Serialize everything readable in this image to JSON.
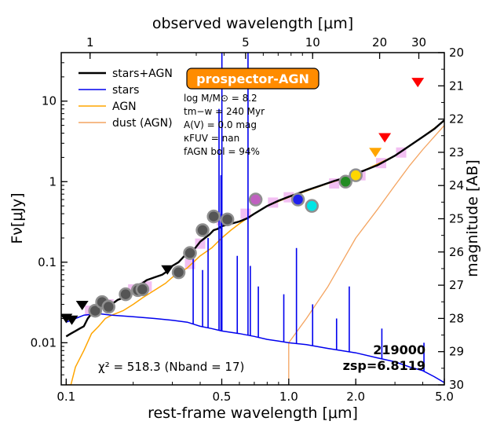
{
  "chart_data": {
    "type": "scatter",
    "xscale": "log",
    "yscale": "log",
    "xlim": [
      0.095,
      5.0
    ],
    "ylim": [
      0.003,
      40
    ],
    "ylim_right_mag": [
      20,
      30
    ],
    "xlabel": "rest-frame wavelength [μm]",
    "ylabel": "Fν[μJy]",
    "top_xlabel": "observed wavelength [μm]",
    "right_ylabel": "magnitude [AB]",
    "x_ticks": [
      {
        "value": 0.1,
        "label": "0.1"
      },
      {
        "value": 0.5,
        "label": "0.5"
      },
      {
        "value": 1.0,
        "label": "1.0"
      },
      {
        "value": 2.0,
        "label": "2.0"
      },
      {
        "value": 5.0,
        "label": "5.0"
      }
    ],
    "top_ticks": [
      {
        "value": 1,
        "label": "1"
      },
      {
        "value": 5,
        "label": "5"
      },
      {
        "value": 10,
        "label": "10"
      },
      {
        "value": 20,
        "label": "20"
      },
      {
        "value": 30,
        "label": "30"
      }
    ],
    "y_ticks": [
      {
        "value": 0.01,
        "label": "0.01"
      },
      {
        "value": 0.1,
        "label": "0.1"
      },
      {
        "value": 1,
        "label": "1"
      },
      {
        "value": 10,
        "label": "10"
      }
    ],
    "mag_ticks": [
      "20",
      "21",
      "22",
      "23",
      "24",
      "25",
      "26",
      "27",
      "28",
      "29",
      "30"
    ],
    "redshift": 6.8119,
    "legend": [
      {
        "label": "stars+AGN",
        "color": "#000000"
      },
      {
        "label": "stars",
        "color": "#0000ee"
      },
      {
        "label": "AGN",
        "color": "#ffa500"
      },
      {
        "label": "dust (AGN)",
        "color": "#f4a460"
      }
    ],
    "badge": "prospector-AGN",
    "params": {
      "logM": "log M/M⊙ = 8.2",
      "tmw": "tm−w = 240 Myr",
      "av": "A(V) = 0.0 mag",
      "kfuv": "κFUV = nan",
      "fbol": "fAGN bol = 94%"
    },
    "chi2": "χ² = 518.3 (Nband = 17)",
    "object_id": "219000",
    "zsp": "zsp=6.8119",
    "series": [
      {
        "name": "stars+AGN",
        "color": "#000000",
        "points": [
          [
            0.1,
            0.012
          ],
          [
            0.105,
            0.013
          ],
          [
            0.11,
            0.014
          ],
          [
            0.115,
            0.015
          ],
          [
            0.12,
            0.016
          ],
          [
            0.125,
            0.02
          ],
          [
            0.13,
            0.023
          ],
          [
            0.14,
            0.026
          ],
          [
            0.15,
            0.028
          ],
          [
            0.16,
            0.03
          ],
          [
            0.17,
            0.034
          ],
          [
            0.18,
            0.036
          ],
          [
            0.19,
            0.04
          ],
          [
            0.2,
            0.042
          ],
          [
            0.21,
            0.05
          ],
          [
            0.22,
            0.055
          ],
          [
            0.23,
            0.06
          ],
          [
            0.25,
            0.065
          ],
          [
            0.27,
            0.07
          ],
          [
            0.29,
            0.08
          ],
          [
            0.3,
            0.09
          ],
          [
            0.32,
            0.1
          ],
          [
            0.34,
            0.12
          ],
          [
            0.36,
            0.13
          ],
          [
            0.38,
            0.15
          ],
          [
            0.4,
            0.18
          ],
          [
            0.42,
            0.2
          ],
          [
            0.44,
            0.22
          ],
          [
            0.46,
            0.25
          ],
          [
            0.48,
            0.26
          ],
          [
            0.5,
            0.28
          ],
          [
            0.55,
            0.3
          ],
          [
            0.6,
            0.32
          ],
          [
            0.65,
            0.35
          ],
          [
            0.7,
            0.4
          ],
          [
            0.8,
            0.5
          ],
          [
            0.9,
            0.58
          ],
          [
            1.0,
            0.65
          ],
          [
            1.2,
            0.78
          ],
          [
            1.4,
            0.9
          ],
          [
            1.6,
            1.02
          ],
          [
            1.8,
            1.12
          ],
          [
            2.0,
            1.25
          ],
          [
            2.5,
            1.6
          ],
          [
            3.0,
            2.1
          ],
          [
            3.5,
            2.8
          ],
          [
            4.0,
            3.6
          ],
          [
            4.5,
            4.5
          ],
          [
            5.0,
            5.8
          ]
        ]
      },
      {
        "name": "stars",
        "color": "#0000ee",
        "points": [
          [
            0.1,
            0.018
          ],
          [
            0.11,
            0.02
          ],
          [
            0.12,
            0.022
          ],
          [
            0.14,
            0.023
          ],
          [
            0.16,
            0.022
          ],
          [
            0.2,
            0.021
          ],
          [
            0.25,
            0.02
          ],
          [
            0.3,
            0.019
          ],
          [
            0.35,
            0.018
          ],
          [
            0.4,
            0.016
          ],
          [
            0.45,
            0.015
          ],
          [
            0.5,
            0.014
          ],
          [
            0.6,
            0.013
          ],
          [
            0.7,
            0.012
          ],
          [
            0.8,
            0.011
          ],
          [
            0.9,
            0.0105
          ],
          [
            1.0,
            0.01
          ],
          [
            1.2,
            0.0095
          ],
          [
            1.5,
            0.0085
          ],
          [
            2.0,
            0.0075
          ],
          [
            2.5,
            0.0065
          ],
          [
            3.0,
            0.0058
          ],
          [
            3.5,
            0.005
          ],
          [
            4.0,
            0.0045
          ],
          [
            4.5,
            0.0038
          ],
          [
            5.0,
            0.0032
          ]
        ]
      },
      {
        "name": "AGN",
        "color": "#ffa500",
        "points": [
          [
            0.1,
            0.003
          ],
          [
            0.105,
            0.003
          ],
          [
            0.11,
            0.005
          ],
          [
            0.12,
            0.008
          ],
          [
            0.13,
            0.013
          ],
          [
            0.14,
            0.016
          ],
          [
            0.15,
            0.02
          ],
          [
            0.16,
            0.022
          ],
          [
            0.18,
            0.025
          ],
          [
            0.2,
            0.03
          ],
          [
            0.22,
            0.036
          ],
          [
            0.25,
            0.045
          ],
          [
            0.28,
            0.055
          ],
          [
            0.3,
            0.065
          ],
          [
            0.35,
            0.085
          ],
          [
            0.4,
            0.12
          ],
          [
            0.45,
            0.15
          ],
          [
            0.5,
            0.2
          ],
          [
            0.55,
            0.25
          ],
          [
            0.6,
            0.3
          ],
          [
            0.65,
            0.35
          ],
          [
            0.7,
            0.4
          ],
          [
            0.8,
            0.5
          ],
          [
            1.0,
            0.64
          ],
          [
            1.5,
            0.95
          ],
          [
            2.0,
            1.23
          ],
          [
            3.0,
            2.1
          ],
          [
            4.0,
            3.6
          ],
          [
            5.0,
            5.7
          ]
        ]
      },
      {
        "name": "dust (AGN)",
        "color": "#f4a460",
        "points": [
          [
            1.0,
            0.0035
          ],
          [
            1.0,
            0.01
          ],
          [
            1.2,
            0.02
          ],
          [
            1.5,
            0.05
          ],
          [
            1.8,
            0.12
          ],
          [
            2.0,
            0.2
          ],
          [
            2.5,
            0.45
          ],
          [
            3.0,
            0.9
          ],
          [
            3.5,
            1.6
          ],
          [
            4.0,
            2.5
          ],
          [
            4.5,
            3.6
          ],
          [
            5.0,
            5.0
          ]
        ]
      }
    ],
    "observed_points": [
      {
        "x": 0.135,
        "y": 0.025,
        "color": "#555555"
      },
      {
        "x": 0.145,
        "y": 0.032,
        "color": "#555555"
      },
      {
        "x": 0.155,
        "y": 0.028,
        "color": "#555555"
      },
      {
        "x": 0.185,
        "y": 0.04,
        "color": "#555555"
      },
      {
        "x": 0.21,
        "y": 0.045,
        "color": "#555555"
      },
      {
        "x": 0.22,
        "y": 0.046,
        "color": "#555555"
      },
      {
        "x": 0.32,
        "y": 0.075,
        "color": "#555555"
      },
      {
        "x": 0.36,
        "y": 0.13,
        "color": "#555555"
      },
      {
        "x": 0.41,
        "y": 0.25,
        "color": "#555555"
      },
      {
        "x": 0.46,
        "y": 0.37,
        "color": "#555555"
      },
      {
        "x": 0.53,
        "y": 0.34,
        "color": "#555555"
      },
      {
        "x": 0.71,
        "y": 0.6,
        "color": "#c060c0"
      },
      {
        "x": 1.1,
        "y": 0.6,
        "color": "#2020ee"
      },
      {
        "x": 1.27,
        "y": 0.5,
        "color": "#00e5e5"
      },
      {
        "x": 1.8,
        "y": 1.0,
        "color": "#228b22"
      },
      {
        "x": 2.0,
        "y": 1.2,
        "color": "#ffd700"
      }
    ],
    "model_photometry": [
      {
        "x": 0.128,
        "y": 0.025
      },
      {
        "x": 0.155,
        "y": 0.03
      },
      {
        "x": 0.2,
        "y": 0.046
      },
      {
        "x": 0.23,
        "y": 0.05
      },
      {
        "x": 0.36,
        "y": 0.095
      },
      {
        "x": 0.4,
        "y": 0.17
      },
      {
        "x": 0.5,
        "y": 0.33
      },
      {
        "x": 0.64,
        "y": 0.4
      },
      {
        "x": 0.85,
        "y": 0.55
      },
      {
        "x": 1.0,
        "y": 0.64
      },
      {
        "x": 1.6,
        "y": 0.95
      },
      {
        "x": 2.1,
        "y": 1.2
      },
      {
        "x": 2.6,
        "y": 1.7
      },
      {
        "x": 3.2,
        "y": 2.3
      }
    ],
    "upper_limits": [
      {
        "x": 0.1,
        "y": 0.02,
        "color": "#000000"
      },
      {
        "x": 0.106,
        "y": 0.019,
        "color": "#000000"
      },
      {
        "x": 0.118,
        "y": 0.029,
        "color": "#000000"
      },
      {
        "x": 0.285,
        "y": 0.08,
        "color": "#000000"
      },
      {
        "x": 2.45,
        "y": 2.3,
        "color": "#ffa500"
      },
      {
        "x": 2.7,
        "y": 3.5,
        "color": "#ff0000"
      },
      {
        "x": 3.8,
        "y": 17,
        "color": "#ff0000"
      }
    ]
  }
}
